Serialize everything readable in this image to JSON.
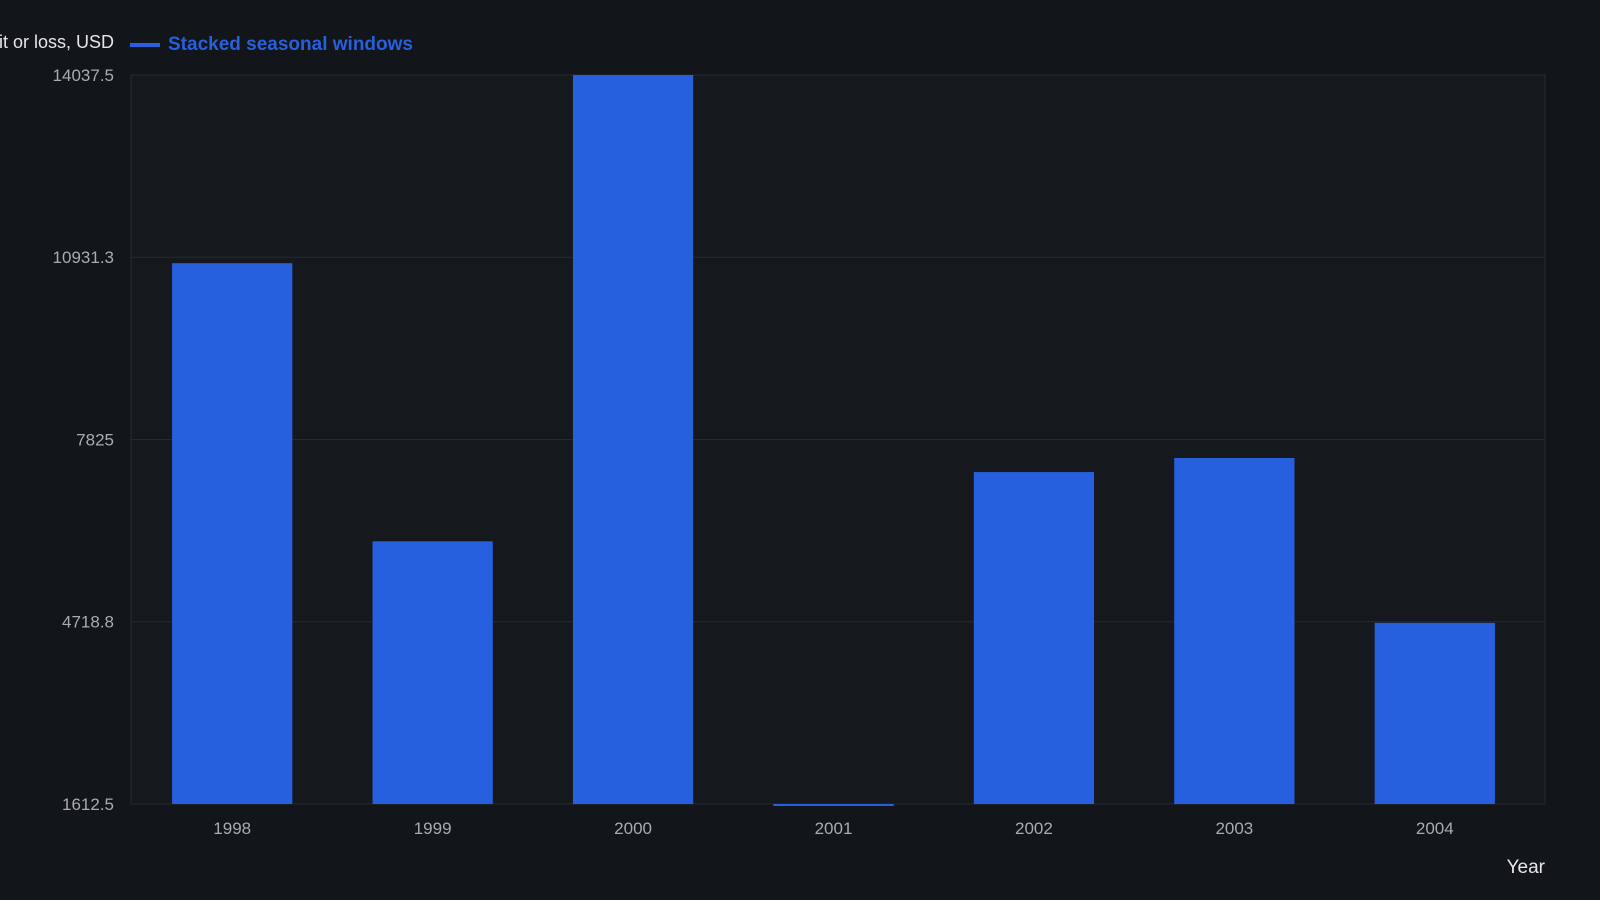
{
  "chart_data": {
    "type": "bar",
    "ylabel": "Profit or loss, USD",
    "xlabel": "Year",
    "categories": [
      "1998",
      "1999",
      "2000",
      "2001",
      "2002",
      "2003",
      "2004"
    ],
    "series": [
      {
        "name": "Stacked seasonal windows",
        "values": [
          10830,
          6090,
          14037.5,
          1580,
          7270,
          7510,
          4700
        ]
      }
    ],
    "ylim": [
      1612.5,
      14037.5
    ],
    "yticks": [
      "1612.5",
      "4718.8",
      "7825",
      "10931.3",
      "14037.5"
    ],
    "grid": true,
    "legend_position": "top-left"
  },
  "colors": {
    "background": "#121519",
    "plot_background": "#15181c",
    "bar": "#2660de",
    "legend_text": "#2660de",
    "grid": "#262a30",
    "axis_text": "#a8abb0",
    "label_text": "#e6e6e6"
  }
}
